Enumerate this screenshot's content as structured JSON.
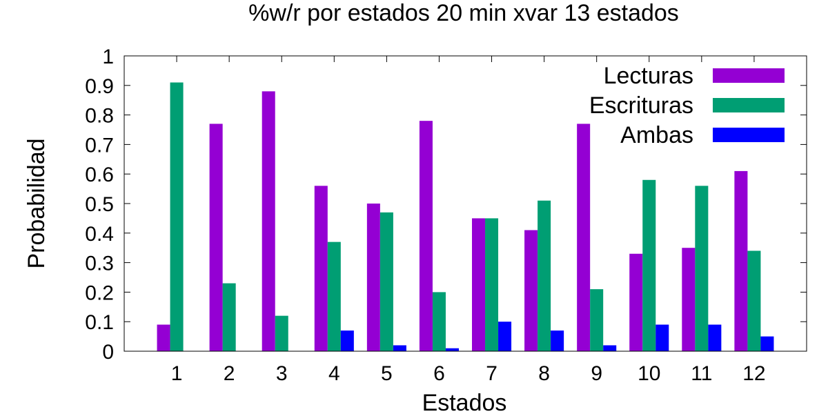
{
  "chart_data": {
    "type": "bar",
    "title": "%w/r por estados 20 min xvar 13 estados",
    "xlabel": "Estados",
    "ylabel": "Probabilidad",
    "categories": [
      "1",
      "2",
      "3",
      "4",
      "5",
      "6",
      "7",
      "8",
      "9",
      "10",
      "11",
      "12"
    ],
    "ylim": [
      0,
      1
    ],
    "yticks": [
      "0",
      "0.1",
      "0.2",
      "0.3",
      "0.4",
      "0.5",
      "0.6",
      "0.7",
      "0.8",
      "0.9",
      "1"
    ],
    "legend_position": "top-right",
    "grid": false,
    "series": [
      {
        "name": "Lecturas",
        "color": "#9400d3",
        "values": [
          0.09,
          0.77,
          0.88,
          0.56,
          0.5,
          0.78,
          0.45,
          0.41,
          0.77,
          0.33,
          0.35,
          0.61
        ]
      },
      {
        "name": "Escrituras",
        "color": "#009e73",
        "values": [
          0.91,
          0.23,
          0.12,
          0.37,
          0.47,
          0.2,
          0.45,
          0.51,
          0.21,
          0.58,
          0.56,
          0.34
        ]
      },
      {
        "name": "Ambas",
        "color": "#0000ff",
        "values": [
          0.0,
          0.0,
          0.0,
          0.07,
          0.02,
          0.01,
          0.1,
          0.07,
          0.02,
          0.09,
          0.09,
          0.05
        ]
      }
    ]
  }
}
